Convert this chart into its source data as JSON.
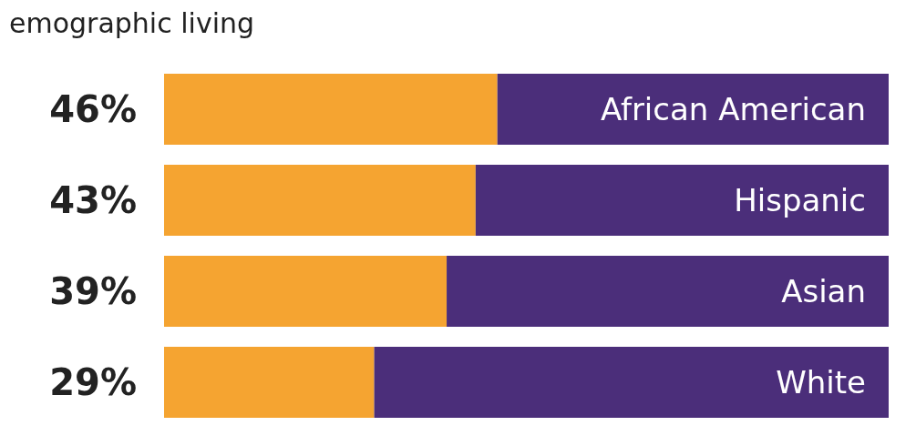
{
  "chart_data": {
    "type": "bar",
    "orientation": "horizontal",
    "stacked": true,
    "title": "emographic living",
    "categories": [
      "African American",
      "Hispanic",
      "Asian",
      "White"
    ],
    "series": [
      {
        "color": "#f5a431",
        "values": [
          46,
          43,
          39,
          29
        ],
        "value_labels": [
          "46%",
          "43%",
          "39%",
          "29%"
        ]
      },
      {
        "color": "#4b2e7a",
        "values": [
          54,
          57,
          61,
          71
        ]
      }
    ],
    "xlim": [
      0,
      100
    ]
  }
}
